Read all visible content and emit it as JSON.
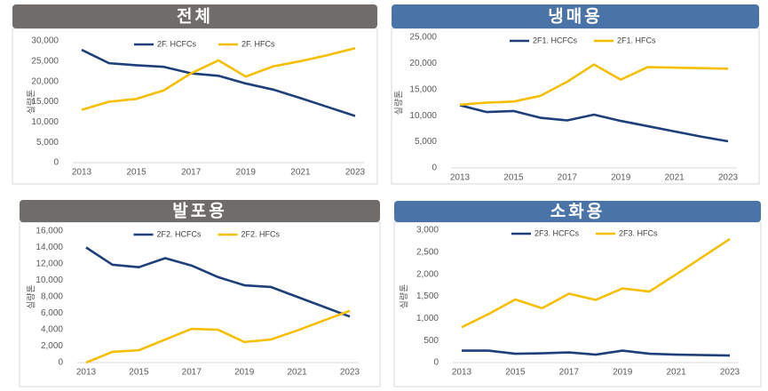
{
  "chart_data": [
    {
      "type": "line",
      "title": "전체",
      "header_color": "#6f6c6a",
      "y_label": "실량톤",
      "x": [
        2013,
        2014,
        2015,
        2016,
        2017,
        2018,
        2019,
        2020,
        2021,
        2022,
        2023
      ],
      "xlim": [
        2013,
        2023
      ],
      "xticks": [
        2013,
        2015,
        2017,
        2019,
        2021,
        2023
      ],
      "ylim": [
        0,
        30000
      ],
      "yticks": [
        0,
        {
          "value": 5000,
          "label": "5,000"
        },
        {
          "value": 10000,
          "label": "10,000"
        },
        {
          "value": 15000,
          "label": "15,000"
        },
        {
          "value": 20000,
          "label": "20,000"
        },
        {
          "value": 25000,
          "label": "25,000"
        },
        {
          "value": 30000,
          "label": "30,000"
        }
      ],
      "series": [
        {
          "name": "2F. HCFCs",
          "color": "#1f3f7a",
          "values": [
            27800,
            24500,
            24000,
            23600,
            22000,
            21400,
            19500,
            18000,
            15900,
            13700,
            11500
          ]
        },
        {
          "name": "2F. HFCs",
          "color": "#f5bf00",
          "values": [
            13000,
            15000,
            15700,
            17800,
            22000,
            25200,
            21200,
            23700,
            25000,
            26500,
            28200
          ]
        }
      ]
    },
    {
      "type": "line",
      "title": "냉매용",
      "header_color": "#4a74a8",
      "y_label": "실량톤",
      "x": [
        2013,
        2014,
        2015,
        2016,
        2017,
        2018,
        2019,
        2020,
        2021,
        2022,
        2023
      ],
      "xlim": [
        2013,
        2023
      ],
      "xticks": [
        2013,
        2015,
        2017,
        2019,
        2021,
        2023
      ],
      "ylim": [
        0,
        25000
      ],
      "yticks": [
        0,
        {
          "value": 5000,
          "label": "5,000"
        },
        {
          "value": 10000,
          "label": "10,000"
        },
        {
          "value": 15000,
          "label": "15,000"
        },
        {
          "value": 20000,
          "label": "20,000"
        },
        {
          "value": 25000,
          "label": "25,000"
        }
      ],
      "series": [
        {
          "name": "2F1. HCFCs",
          "color": "#1f3f7a",
          "values": [
            12000,
            10700,
            10900,
            9600,
            9100,
            10200,
            9000,
            8000,
            7000,
            6000,
            5100
          ]
        },
        {
          "name": "2F1. HFCs",
          "color": "#f5bf00",
          "values": [
            12100,
            12500,
            12700,
            13800,
            16500,
            19800,
            16900,
            19300,
            19200,
            19100,
            19000
          ]
        }
      ]
    },
    {
      "type": "line",
      "title": "발포용",
      "header_color": "#6f6c6a",
      "y_label": "실량톤",
      "x": [
        2013,
        2014,
        2015,
        2016,
        2017,
        2018,
        2019,
        2020,
        2021,
        2022,
        2023
      ],
      "xlim": [
        2013,
        2023
      ],
      "xticks": [
        2013,
        2015,
        2017,
        2019,
        2021,
        2023
      ],
      "ylim": [
        0,
        16000
      ],
      "yticks": [
        0,
        {
          "value": 2000,
          "label": "2,000"
        },
        {
          "value": 4000,
          "label": "4,000"
        },
        {
          "value": 6000,
          "label": "6,000"
        },
        {
          "value": 8000,
          "label": "8,000"
        },
        {
          "value": 10000,
          "label": "10,000"
        },
        {
          "value": 12000,
          "label": "12,000"
        },
        {
          "value": 14000,
          "label": "14,000"
        },
        {
          "value": 16000,
          "label": "16,000"
        }
      ],
      "series": [
        {
          "name": "2F2. HCFCs",
          "color": "#1f3f7a",
          "values": [
            14000,
            11900,
            11600,
            12700,
            11800,
            10400,
            9400,
            9200,
            8000,
            6800,
            5600
          ]
        },
        {
          "name": "2F2. HFCs",
          "color": "#f5bf00",
          "values": [
            0,
            1300,
            1500,
            2800,
            4100,
            4000,
            2500,
            2800,
            3900,
            5100,
            6300
          ]
        }
      ]
    },
    {
      "type": "line",
      "title": "소화용",
      "header_color": "#4a74a8",
      "y_label": "실량톤",
      "x": [
        2013,
        2014,
        2015,
        2016,
        2017,
        2018,
        2019,
        2020,
        2021,
        2022,
        2023
      ],
      "xlim": [
        2013,
        2023
      ],
      "xticks": [
        2013,
        2015,
        2017,
        2019,
        2021,
        2023
      ],
      "ylim": [
        0,
        3000
      ],
      "yticks": [
        0,
        500,
        {
          "value": 1000,
          "label": "1,000"
        },
        {
          "value": 1500,
          "label": "1,500"
        },
        {
          "value": 2000,
          "label": "2,000"
        },
        {
          "value": 2500,
          "label": "2,500"
        },
        {
          "value": 3000,
          "label": "3,000"
        }
      ],
      "series": [
        {
          "name": "2F3. HCFCs",
          "color": "#1f3f7a",
          "values": [
            270,
            270,
            200,
            210,
            230,
            180,
            270,
            200,
            180,
            170,
            160
          ]
        },
        {
          "name": "2F3. HFCs",
          "color": "#f5bf00",
          "values": [
            800,
            1100,
            1430,
            1230,
            1560,
            1420,
            1680,
            1610,
            2000,
            2400,
            2800
          ]
        }
      ]
    }
  ]
}
